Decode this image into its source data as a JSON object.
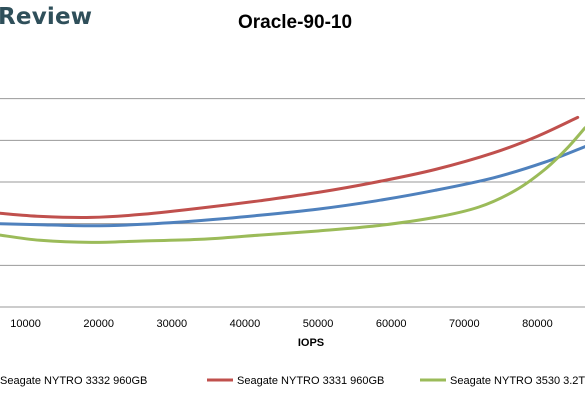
{
  "brand": {
    "text": "Review"
  },
  "colors": {
    "grid": "#9a9a9a",
    "axis_text": "#000000"
  },
  "chart_data": {
    "type": "line",
    "title": "Oracle-90-10",
    "xlabel": "IOPS",
    "ylabel": "",
    "xlim": [
      6500,
      86500
    ],
    "ylim": [
      0,
      12
    ],
    "x_ticks": [
      10000,
      20000,
      30000,
      40000,
      50000,
      60000,
      70000,
      80000
    ],
    "x_tick_labels": [
      "10000",
      "20000",
      "30000",
      "40000",
      "50000",
      "60000",
      "70000",
      "80000"
    ],
    "y_grid": [
      0,
      2,
      4,
      6,
      8,
      10
    ],
    "grid": true,
    "legend_position": "bottom",
    "series": [
      {
        "name": "Seagate NYTRO 3332 960GB",
        "color": "#4f81bd",
        "x": [
          6500,
          12000,
          19000,
          26000,
          34000,
          42000,
          50000,
          58000,
          66000,
          74000,
          81000,
          86500
        ],
        "y": [
          4.0,
          3.95,
          3.9,
          3.97,
          4.15,
          4.4,
          4.7,
          5.1,
          5.6,
          6.2,
          6.95,
          7.7
        ]
      },
      {
        "name": "Seagate NYTRO 3331 960GB",
        "color": "#c0504d",
        "x": [
          6500,
          12000,
          19000,
          26000,
          34000,
          42000,
          50000,
          58000,
          66000,
          74000,
          80000,
          85500
        ],
        "y": [
          4.5,
          4.35,
          4.3,
          4.45,
          4.75,
          5.1,
          5.5,
          6.0,
          6.6,
          7.4,
          8.2,
          9.1
        ]
      },
      {
        "name": "Seagate NYTRO 3530 3.2T",
        "color": "#9bbb59",
        "x": [
          6500,
          12000,
          19000,
          26000,
          34000,
          42000,
          50000,
          58000,
          66000,
          72000,
          77000,
          81000,
          84000,
          86500
        ],
        "y": [
          3.45,
          3.2,
          3.1,
          3.17,
          3.25,
          3.45,
          3.65,
          3.9,
          4.3,
          4.8,
          5.6,
          6.6,
          7.6,
          8.6
        ]
      }
    ]
  }
}
